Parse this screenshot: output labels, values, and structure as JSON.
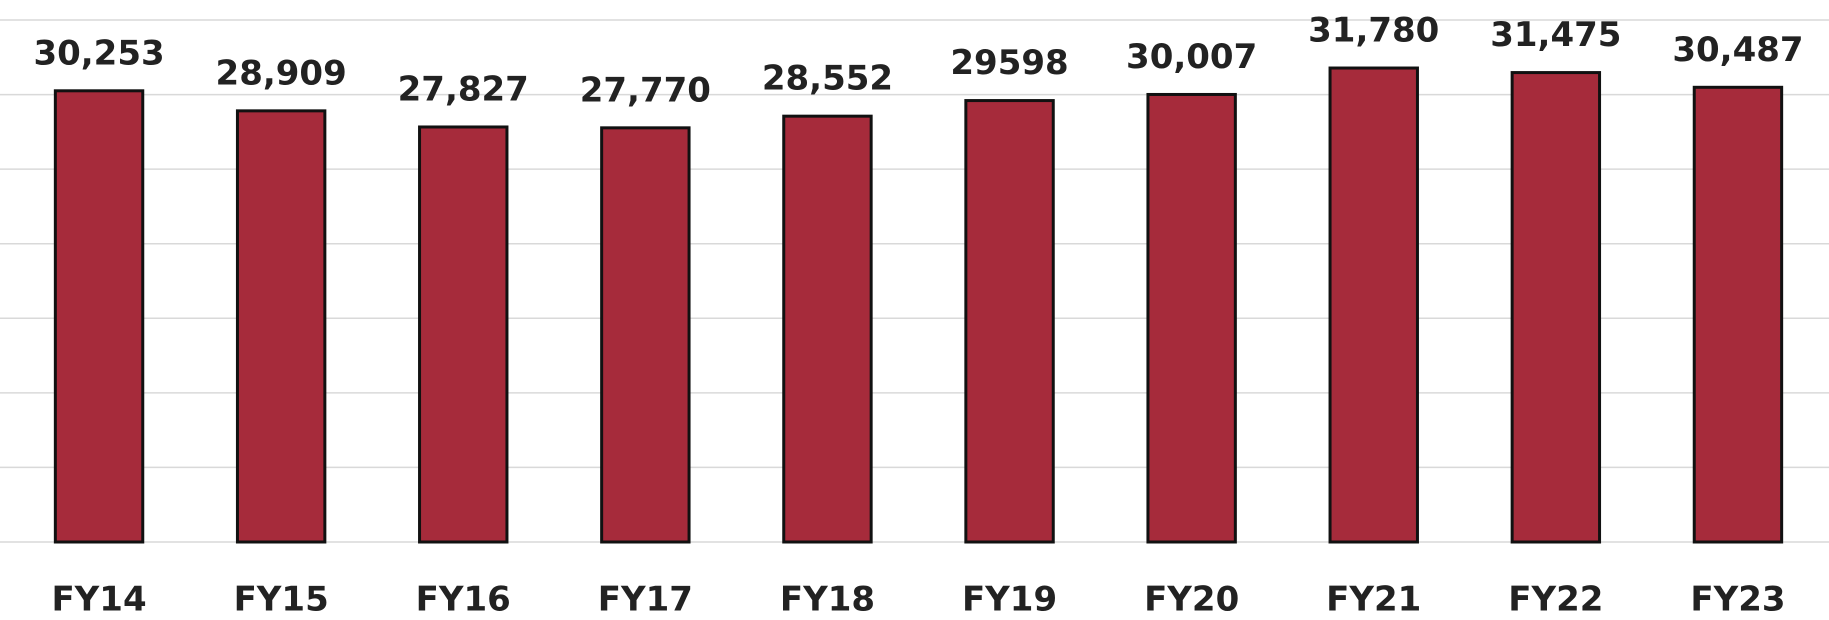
{
  "chart_data": {
    "type": "bar",
    "categories": [
      "FY14",
      "FY15",
      "FY16",
      "FY17",
      "FY18",
      "FY19",
      "FY20",
      "FY21",
      "FY22",
      "FY23"
    ],
    "values": [
      30253,
      28909,
      27827,
      27770,
      28552,
      29598,
      30007,
      31780,
      31475,
      30487
    ],
    "value_labels": [
      "30,253",
      "28,909",
      "27,827",
      "27,770",
      "28,552",
      "29598",
      "30,007",
      "31,780",
      "31,475",
      "30,487"
    ],
    "color": "#a62b3b",
    "ylim": [
      0,
      35000
    ],
    "yticks": [
      0,
      5000,
      10000,
      15000,
      20000,
      25000,
      30000,
      35000
    ],
    "grid": true
  }
}
